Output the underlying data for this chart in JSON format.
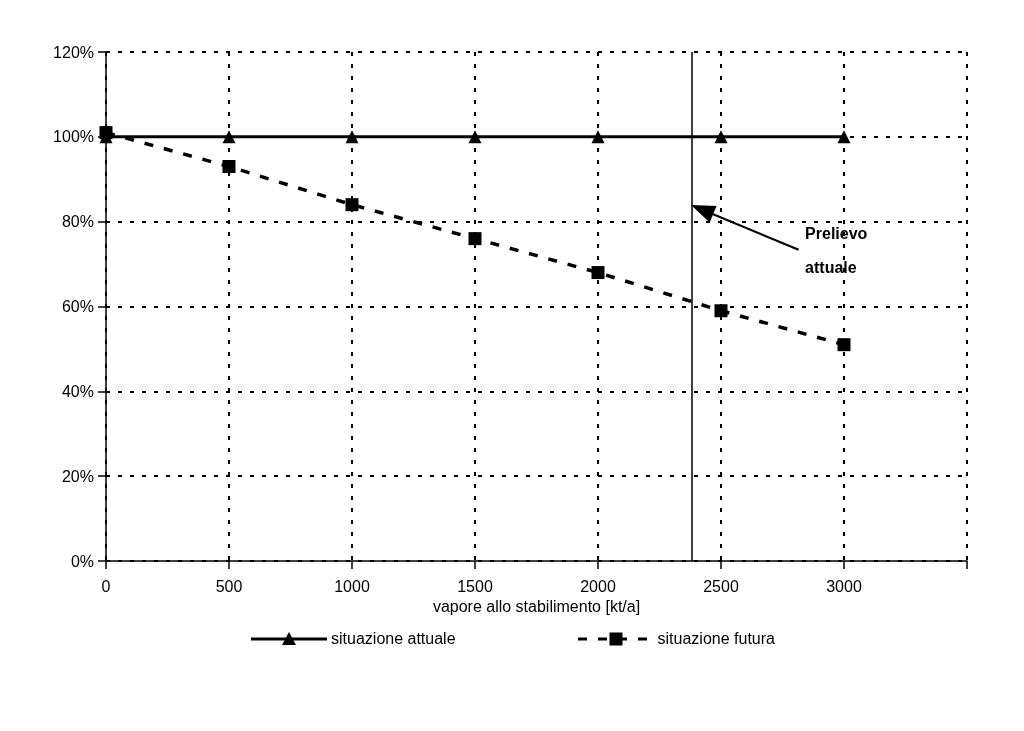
{
  "chart_data": {
    "type": "line",
    "xlabel": "vapore allo stabilimento [kt/a]",
    "x": [
      0,
      500,
      1000,
      1500,
      2000,
      2500,
      3000
    ],
    "series": [
      {
        "name": "situazione attuale",
        "color": "#000000",
        "marker": "triangle",
        "line_style": "solid",
        "values": [
          100,
          100,
          100,
          100,
          100,
          100,
          100
        ]
      },
      {
        "name": "situazione futura",
        "color": "#000000",
        "marker": "square",
        "line_style": "dashed",
        "values": [
          101,
          93,
          84,
          76,
          68,
          59,
          51
        ]
      }
    ],
    "xlim": [
      0,
      3500
    ],
    "xticks": [
      0,
      500,
      1000,
      1500,
      2000,
      2500,
      3000,
      {
        "value": 3500,
        "label": null
      }
    ],
    "ylim": [
      0,
      120
    ],
    "yticks": [
      {
        "value": 0,
        "label": "0%"
      },
      {
        "value": 20,
        "label": "20%"
      },
      {
        "value": 40,
        "label": "40%"
      },
      {
        "value": 60,
        "label": "60%"
      },
      {
        "value": 80,
        "label": "80%"
      },
      {
        "value": 100,
        "label": "100%"
      },
      {
        "value": 120,
        "label": "120%"
      }
    ],
    "ref_lines": [
      {
        "axis": "x",
        "value": 2380,
        "color": "#000000",
        "line_style": "solid"
      }
    ],
    "annotations": [
      "Prelievo attuale"
    ],
    "grid": true,
    "legend": "bottom"
  }
}
